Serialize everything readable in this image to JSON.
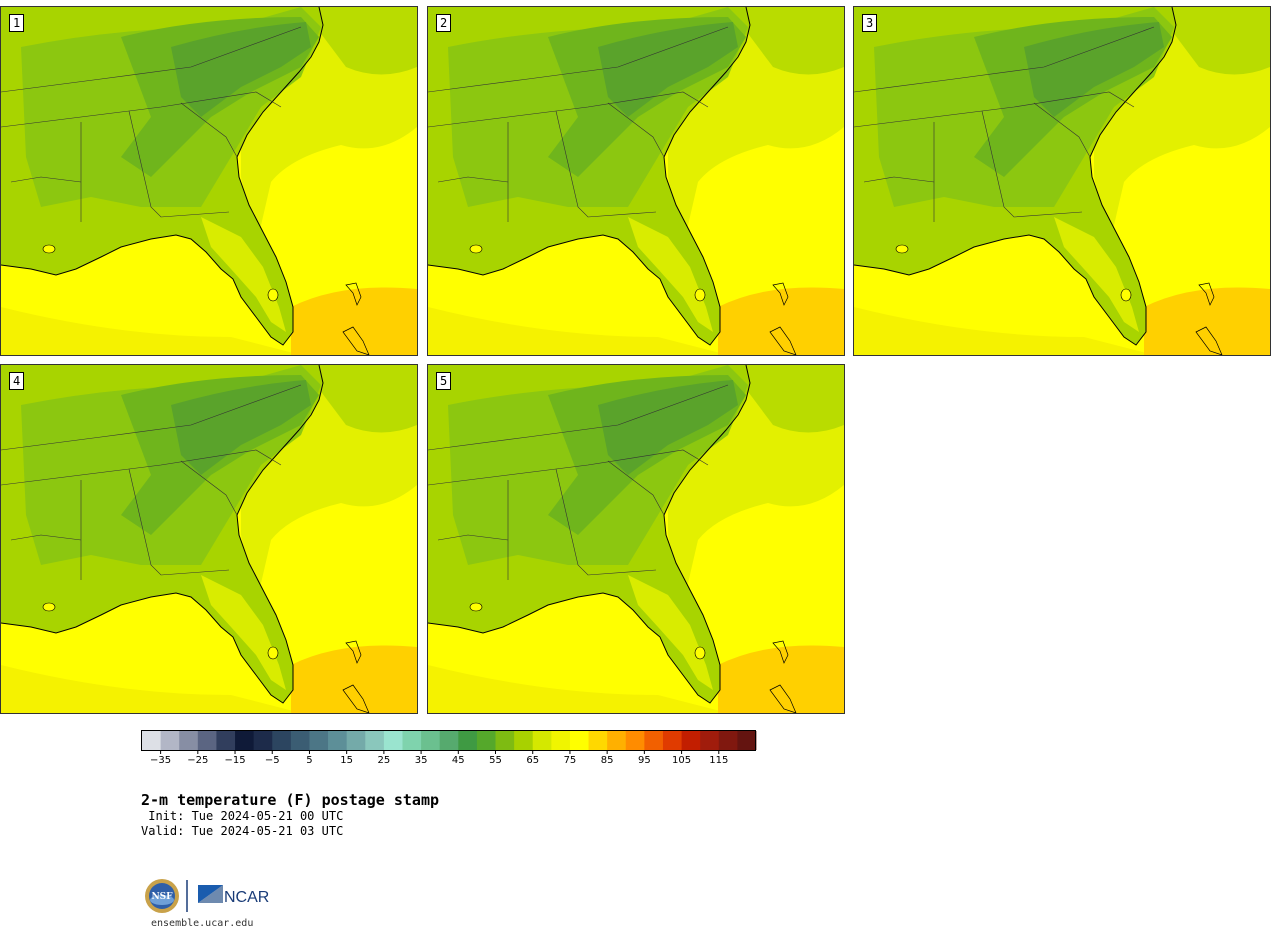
{
  "panels": [
    {
      "label": "1"
    },
    {
      "label": "2"
    },
    {
      "label": "3"
    },
    {
      "label": "4"
    },
    {
      "label": "5"
    }
  ],
  "colorbar": {
    "colors": [
      "#dde0e6",
      "#b2b6c6",
      "#878ea4",
      "#5b6582",
      "#313e5d",
      "#0f1a38",
      "#1d2b4a",
      "#2c4560",
      "#3b5d73",
      "#4c7686",
      "#5d8f98",
      "#74aaa9",
      "#8ac7bc",
      "#9ae4cf",
      "#7fd3ad",
      "#6bc08f",
      "#56aa6e",
      "#3f9a43",
      "#55a82b",
      "#7ebb12",
      "#a8d100",
      "#d4e800",
      "#f0f500",
      "#ffff00",
      "#ffd800",
      "#ffb000",
      "#ff8c00",
      "#f26000",
      "#e03b00",
      "#c21e00",
      "#a01c0c",
      "#80180f",
      "#641410"
    ],
    "tick_labels": [
      "−35",
      "−25",
      "−15",
      "−5",
      "5",
      "15",
      "25",
      "35",
      "45",
      "55",
      "65",
      "75",
      "85",
      "95",
      "105",
      "115"
    ]
  },
  "title": "2-m temperature (F) postage stamp",
  "init_text": " Init: Tue 2024-05-21 00 UTC",
  "valid_text": "Valid: Tue 2024-05-21 03 UTC",
  "logos": {
    "nsf": "NSF",
    "ncar": "NCAR"
  },
  "site": "ensemble.ucar.edu"
}
